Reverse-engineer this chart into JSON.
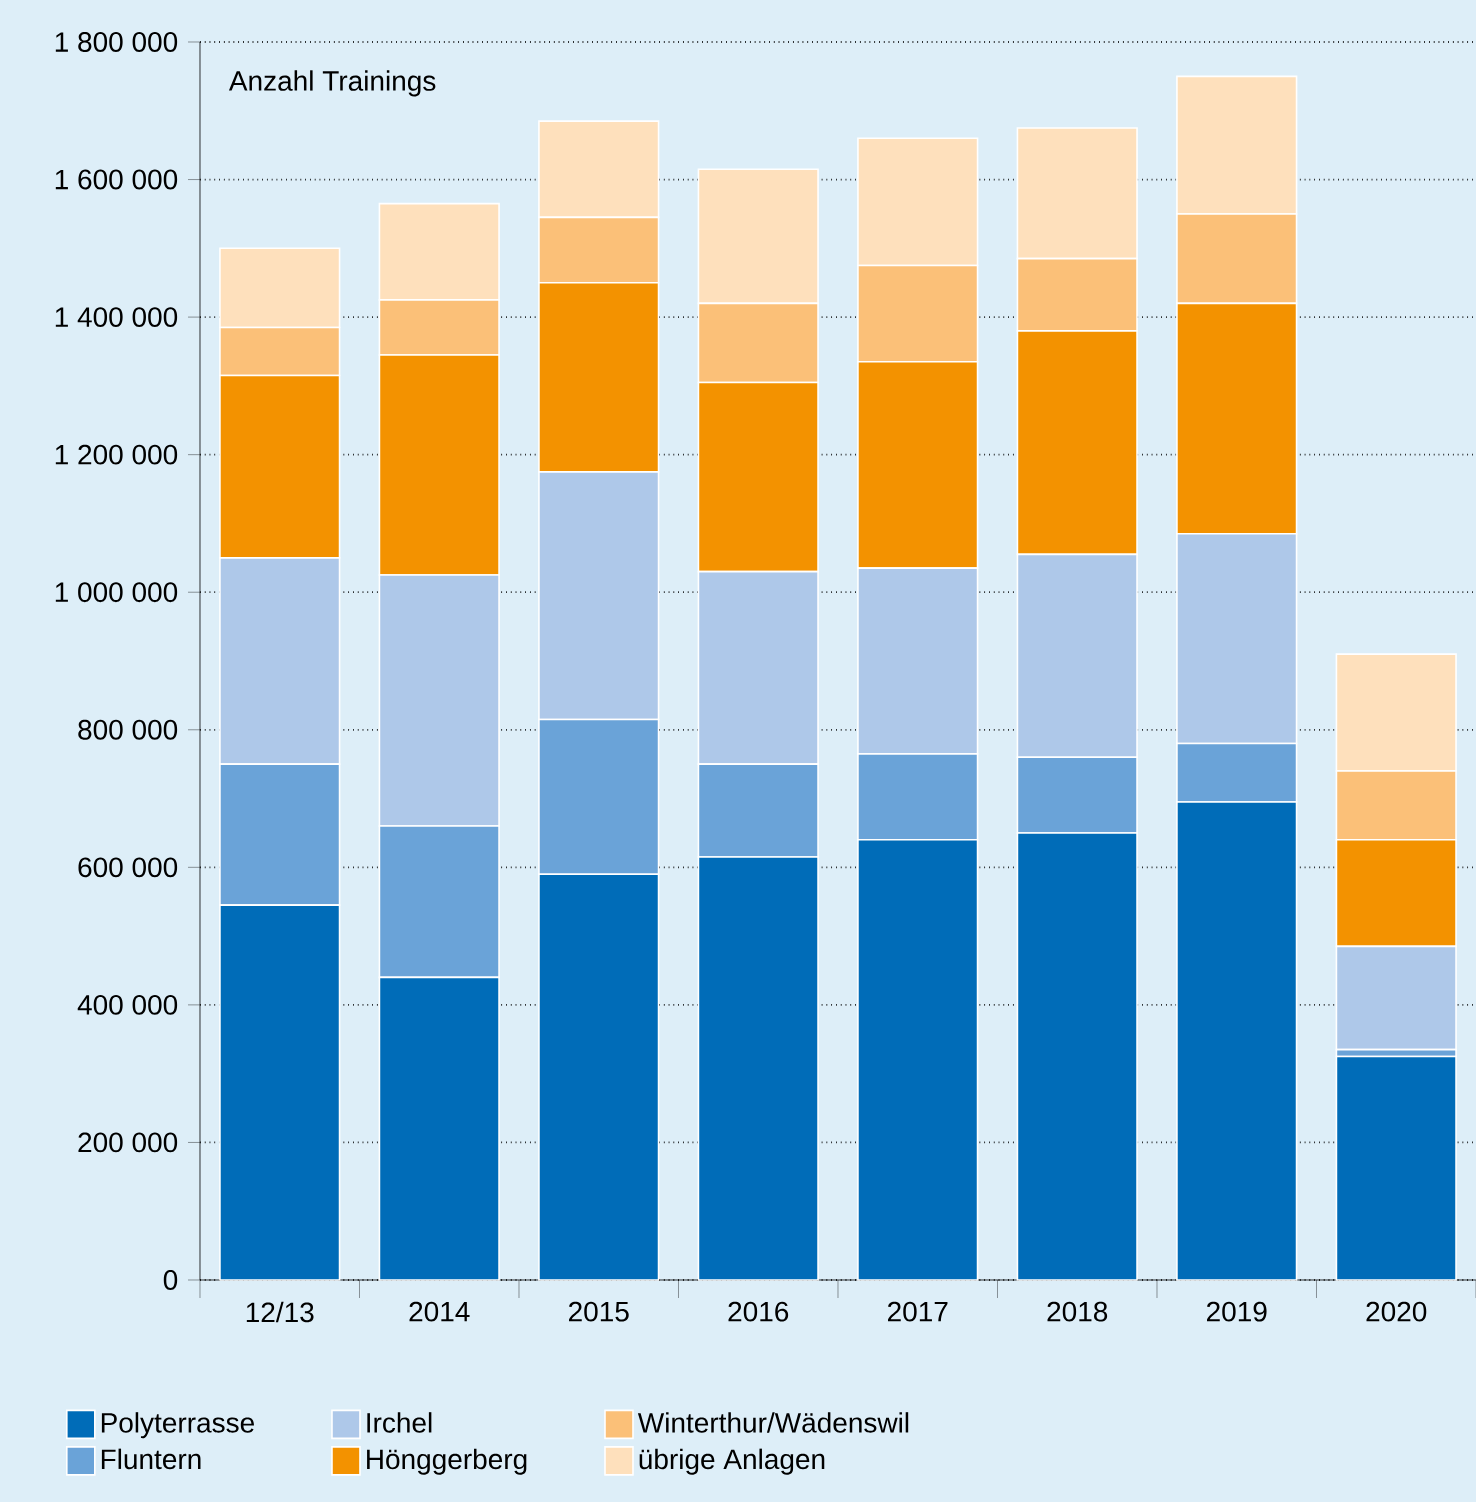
{
  "chart_data": {
    "type": "bar",
    "stacked": true,
    "ylabel": "Anzahl Trainings",
    "categories": [
      "12/13",
      "2014",
      "2015",
      "2016",
      "2017",
      "2018",
      "2019",
      "2020"
    ],
    "series": [
      {
        "name": "Polyterrasse",
        "color": "#006cb8",
        "values": [
          545000,
          440000,
          590000,
          615000,
          640000,
          650000,
          695000,
          325000
        ]
      },
      {
        "name": "Fluntern",
        "color": "#6aa3d8",
        "values": [
          205000,
          220000,
          225000,
          135000,
          125000,
          110000,
          85000,
          10000
        ]
      },
      {
        "name": "Irchel",
        "color": "#aec8e9",
        "values": [
          300000,
          365000,
          360000,
          280000,
          270000,
          295000,
          305000,
          150000
        ]
      },
      {
        "name": "Hönggerberg",
        "color": "#f39200",
        "values": [
          265000,
          320000,
          275000,
          275000,
          300000,
          325000,
          335000,
          155000
        ]
      },
      {
        "name": "Winterthur/Wädenswil",
        "color": "#fbc078",
        "values": [
          70000,
          80000,
          95000,
          115000,
          140000,
          105000,
          130000,
          100000
        ]
      },
      {
        "name": "übrige Anlagen",
        "color": "#fee0bc",
        "values": [
          115000,
          140000,
          140000,
          195000,
          185000,
          190000,
          200000,
          170000
        ]
      }
    ],
    "ylim": [
      0,
      1800000
    ],
    "yticks": [
      0,
      {
        "value": 200000,
        "label": "200 000"
      },
      {
        "value": 400000,
        "label": "400 000"
      },
      {
        "value": 600000,
        "label": "600 000"
      },
      {
        "value": 800000,
        "label": "800 000"
      },
      {
        "value": 1000000,
        "label": "1 000 000"
      },
      {
        "value": 1200000,
        "label": "1 200 000"
      },
      {
        "value": 1400000,
        "label": "1 400 000"
      },
      {
        "value": 1600000,
        "label": "1 600 000"
      },
      {
        "value": 1800000,
        "label": "1 800 000"
      }
    ],
    "grid": "y",
    "legend": "bottom"
  }
}
